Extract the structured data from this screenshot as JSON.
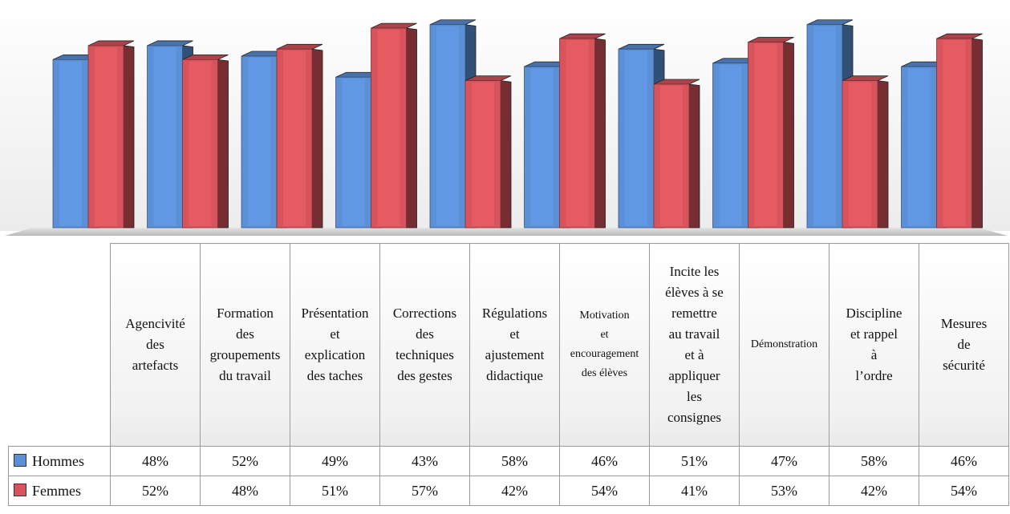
{
  "chart_data": {
    "type": "bar",
    "style": "3d-clustered-column",
    "categories": [
      "Agencivité des artefacts",
      "Formation des groupements du travail",
      "Présentation et explication des taches",
      "Corrections des techniques des gestes",
      "Régulations et ajustement didactique",
      "Motivation et encouragement des élèves",
      "Incite les élèves à se remettre au travail et à appliquer les consignes",
      "Démonstration",
      "Discipline et rappel à l’ordre",
      "Mesures de sécurité"
    ],
    "category_lines": [
      [
        "Agencivité",
        "des",
        "artefacts"
      ],
      [
        "Formation",
        "des",
        "groupements",
        "du travail"
      ],
      [
        "Présentation",
        "et",
        "explication",
        "des taches"
      ],
      [
        "Corrections",
        "des",
        "techniques",
        "des gestes"
      ],
      [
        "Régulations",
        "et",
        "ajustement",
        "didactique"
      ],
      [
        "Motivation",
        "et",
        "encouragement",
        "des élèves"
      ],
      [
        "Incite les",
        "élèves à se",
        "remettre",
        "au travail",
        "et à",
        "appliquer",
        "les",
        "consignes"
      ],
      [
        "Démonstration"
      ],
      [
        "Discipline",
        "et rappel",
        "à",
        "l’ordre"
      ],
      [
        "Mesures",
        "de",
        "sécurité"
      ]
    ],
    "series": [
      {
        "name": "Hommes",
        "color": "#5b8fd6",
        "values": [
          48,
          52,
          49,
          43,
          58,
          46,
          51,
          47,
          58,
          46
        ],
        "labels": [
          "48%",
          "52%",
          "49%",
          "43%",
          "58%",
          "46%",
          "51%",
          "47%",
          "58%",
          "46%"
        ]
      },
      {
        "name": "Femmes",
        "color": "#d8545c",
        "values": [
          52,
          48,
          51,
          57,
          42,
          54,
          41,
          53,
          42,
          54
        ],
        "labels": [
          "52%",
          "48%",
          "51%",
          "57%",
          "42%",
          "54%",
          "41%",
          "53%",
          "42%",
          "54%"
        ]
      }
    ],
    "ylim": [
      0,
      60
    ],
    "grid": false,
    "legend": "table-left"
  }
}
